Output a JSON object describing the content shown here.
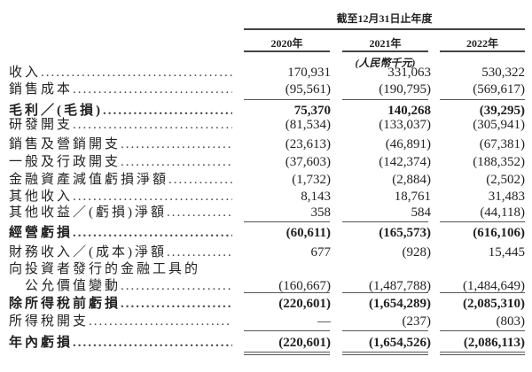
{
  "header": {
    "period": "截至12月31日止年度",
    "years": [
      "2020年",
      "2021年",
      "2022年"
    ],
    "units": "(人民幣千元)"
  },
  "rows": [
    {
      "label": "收入",
      "values": [
        "170,931",
        "331,063",
        "530,322"
      ],
      "bold": false
    },
    {
      "label": "銷售成本",
      "values": [
        "(95,561)",
        "(190,795)",
        "(569,617)"
      ],
      "bold": false
    },
    {
      "label": "毛利／(毛損)",
      "values": [
        "75,370",
        "140,268",
        "(39,295)"
      ],
      "bold": true
    },
    {
      "label": "研發開支",
      "values": [
        "(81,534)",
        "(133,037)",
        "(305,941)"
      ],
      "bold": false
    },
    {
      "label": "銷售及營銷開支",
      "values": [
        "(23,613)",
        "(46,891)",
        "(67,381)"
      ],
      "bold": false
    },
    {
      "label": "一般及行政開支",
      "values": [
        "(37,603)",
        "(142,374)",
        "(188,352)"
      ],
      "bold": false
    },
    {
      "label": "金融資產減值虧損淨額",
      "values": [
        "(1,732)",
        "(2,884)",
        "(2,502)"
      ],
      "bold": false
    },
    {
      "label": "其他收入",
      "values": [
        "8,143",
        "18,761",
        "31,483"
      ],
      "bold": false
    },
    {
      "label": "其他收益／(虧損)淨額",
      "values": [
        "358",
        "584",
        "(44,118)"
      ],
      "bold": false
    },
    {
      "label": "經營虧損",
      "values": [
        "(60,611)",
        "(165,573)",
        "(616,106)"
      ],
      "bold": true
    },
    {
      "label": "財務收入／(成本)淨額",
      "values": [
        "677",
        "(928)",
        "15,445"
      ],
      "bold": false
    },
    {
      "label": "向投資者發行的金融工具的",
      "values": [
        "",
        "",
        ""
      ],
      "bold": false
    },
    {
      "label": "　公允價值變動",
      "values": [
        "(160,667)",
        "(1,487,788)",
        "(1,484,649)"
      ],
      "bold": false
    },
    {
      "label": "除所得稅前虧損",
      "values": [
        "(220,601)",
        "(1,654,289)",
        "(2,085,310)"
      ],
      "bold": true
    },
    {
      "label": "所得稅開支",
      "values": [
        "—",
        "(237)",
        "(803)"
      ],
      "bold": false
    },
    {
      "label": "年內虧損",
      "values": [
        "(220,601)",
        "(1,654,526)",
        "(2,086,113)"
      ],
      "bold": true
    }
  ]
}
